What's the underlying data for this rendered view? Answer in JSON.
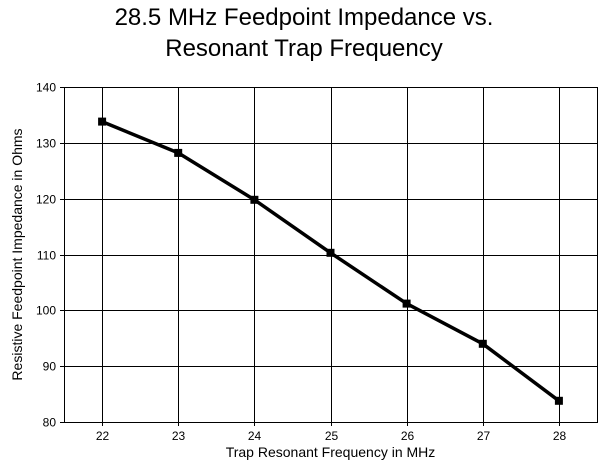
{
  "chart_data": {
    "type": "line",
    "title_lines": [
      "28.5 MHz Feedpoint Impedance vs.",
      "Resonant Trap Frequency"
    ],
    "xlabel": "Trap Resonant Frequency in MHz",
    "ylabel": "Resistive Feedpoint Impedance in Ohms",
    "x": [
      22,
      23,
      24,
      25,
      26,
      27,
      28
    ],
    "series": [
      {
        "values": [
          133.8,
          128.2,
          119.8,
          110.3,
          101.2,
          94.0,
          83.8
        ]
      }
    ],
    "xlim": [
      21.5,
      28.5
    ],
    "ylim": [
      80,
      140
    ],
    "xticks": [
      "22",
      "23",
      "24",
      "25",
      "26",
      "27",
      "28"
    ],
    "yticks": [
      "80",
      "90",
      "100",
      "110",
      "120",
      "130",
      "140"
    ],
    "grid": true,
    "legend": "none",
    "line_color": "#000000",
    "marker": "square"
  }
}
